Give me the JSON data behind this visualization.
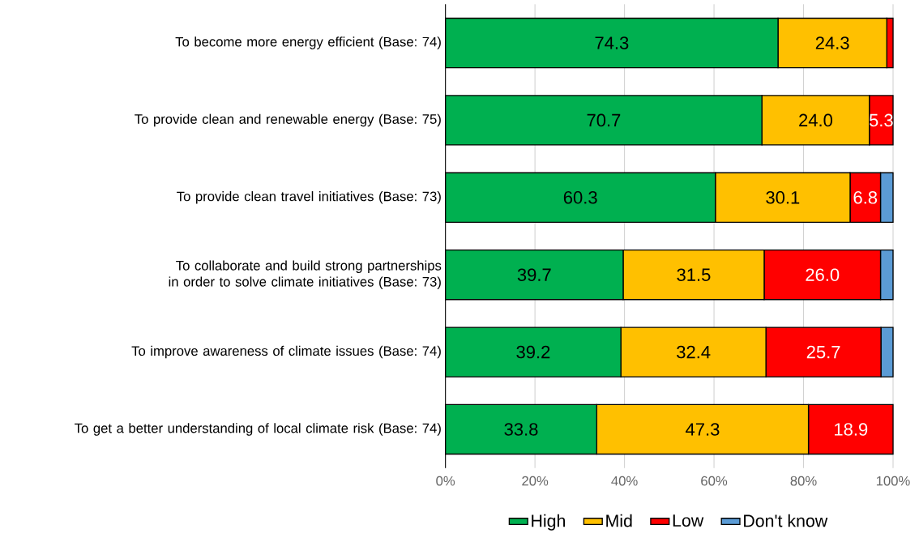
{
  "chart_data": {
    "type": "bar",
    "orientation": "horizontal",
    "stacked": true,
    "categories": [
      "To become more energy efficient (Base: 74)",
      "To provide clean and renewable energy (Base: 75)",
      "To provide clean travel initiatives (Base: 73)",
      "To collaborate and build strong partnerships in order to solve climate initiatives (Base: 73)",
      "To improve awareness of climate issues (Base: 74)",
      "To get a better understanding of local climate risk (Base: 74)"
    ],
    "series": [
      {
        "name": "High",
        "color": "#00b050",
        "values": [
          74.3,
          70.7,
          60.3,
          39.7,
          39.2,
          33.8
        ],
        "value_labels": [
          "74.3",
          "70.7",
          "60.3",
          "39.7",
          "39.2",
          "33.8"
        ]
      },
      {
        "name": "Mid",
        "color": "#ffc000",
        "values": [
          24.3,
          24.0,
          30.1,
          31.5,
          32.4,
          47.3
        ],
        "value_labels": [
          "24.3",
          "24.0",
          "30.1",
          "31.5",
          "32.4",
          "47.3"
        ]
      },
      {
        "name": "Low",
        "color": "#ff0000",
        "values": [
          1.4,
          5.3,
          6.8,
          26.0,
          25.7,
          18.9
        ],
        "value_labels": [
          null,
          "5.3",
          "6.8",
          "26.0",
          "25.7",
          "18.9"
        ]
      },
      {
        "name": "Don't know",
        "color": "#5b9bd5",
        "values": [
          0,
          0,
          2.8,
          2.8,
          2.7,
          0
        ]
      }
    ],
    "xlim": [
      0,
      100
    ],
    "xticks": [
      {
        "value": 0,
        "label": "0%"
      },
      {
        "value": 20,
        "label": "20%"
      },
      {
        "value": 40,
        "label": "40%"
      },
      {
        "value": 60,
        "label": "60%"
      },
      {
        "value": 80,
        "label": "80%"
      },
      {
        "value": 100,
        "label": "100%"
      }
    ],
    "grid": "x",
    "legend": "bottom"
  }
}
